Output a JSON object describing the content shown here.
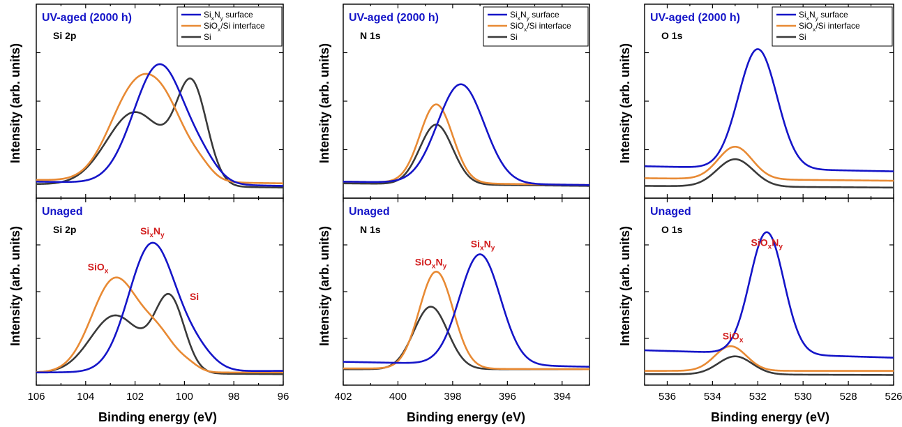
{
  "figure": {
    "y_axis_label": "Intensity (arb. units)",
    "x_axis_label": "Binding energy (eV)"
  },
  "colors": {
    "SixNy": "#1515c8",
    "interface": "#e88a34",
    "Si": "#3a3a3a",
    "panel_title": "#1515c8",
    "peak_label": "#d21e1e"
  },
  "chart_data": [
    {
      "type": "line",
      "row": "aged",
      "col": 0,
      "title": "UV-aged (2000 h)",
      "subtitle": "Si 2p",
      "xlim": [
        106,
        96
      ],
      "ylim": [
        0,
        1
      ],
      "xticks": [
        106,
        104,
        102,
        100,
        98,
        96
      ],
      "legend": {
        "position": "top-right",
        "entries": [
          {
            "series": "SixNy",
            "base": "Si",
            "sub1": "x",
            "mid": "N",
            "sub2": "y",
            "suffix": " surface"
          },
          {
            "series": "interface",
            "base": "SiO",
            "sub1": "x",
            "mid": "",
            "sub2": "",
            "suffix": "/Si interface"
          },
          {
            "series": "Si",
            "base": "Si",
            "sub1": "",
            "mid": "",
            "sub2": "",
            "suffix": ""
          }
        ]
      },
      "series": [
        {
          "name": "SixNy",
          "baseline": [
            0.04,
            0.015
          ],
          "peaks": [
            [
              101.0,
              0.7,
              1.05
            ],
            [
              99.2,
              0.07,
              0.6
            ]
          ]
        },
        {
          "name": "interface",
          "baseline": [
            0.05,
            0.03
          ],
          "peaks": [
            [
              102.1,
              0.48,
              1.0
            ],
            [
              100.7,
              0.34,
              0.9
            ],
            [
              99.3,
              0.04,
              0.45
            ]
          ]
        },
        {
          "name": "Si",
          "baseline": [
            0.025,
            0.005
          ],
          "peaks": [
            [
              102.0,
              0.43,
              1.15
            ],
            [
              99.7,
              0.57,
              0.62
            ]
          ]
        }
      ],
      "labels": []
    },
    {
      "type": "line",
      "row": "aged",
      "col": 1,
      "title": "UV-aged (2000 h)",
      "subtitle": "N 1s",
      "xlim": [
        402,
        393
      ],
      "ylim": [
        0,
        1
      ],
      "xticks": [
        402,
        400,
        398,
        396,
        394
      ],
      "legend": {
        "position": "top-right",
        "entries": [
          {
            "series": "SixNy",
            "base": "Si",
            "sub1": "x",
            "mid": "N",
            "sub2": "y",
            "suffix": " surface"
          },
          {
            "series": "interface",
            "base": "SiO",
            "sub1": "x",
            "mid": "",
            "sub2": "",
            "suffix": "/Si interface"
          },
          {
            "series": "Si",
            "base": "Si",
            "sub1": "",
            "mid": "",
            "sub2": "",
            "suffix": ""
          }
        ]
      },
      "series": [
        {
          "name": "SixNy",
          "baseline": [
            0.04,
            0.02
          ],
          "peaks": [
            [
              397.7,
              0.58,
              0.85
            ]
          ]
        },
        {
          "name": "interface",
          "baseline": [
            0.04,
            0.02
          ],
          "peaks": [
            [
              398.6,
              0.46,
              0.6
            ]
          ]
        },
        {
          "name": "Si",
          "baseline": [
            0.03,
            0.015
          ],
          "peaks": [
            [
              398.6,
              0.35,
              0.6
            ]
          ]
        }
      ],
      "labels": []
    },
    {
      "type": "line",
      "row": "aged",
      "col": 2,
      "title": "UV-aged (2000 h)",
      "subtitle": "O 1s",
      "xlim": [
        537,
        526
      ],
      "ylim": [
        0,
        1
      ],
      "xticks": [
        536,
        534,
        532,
        530,
        528,
        526
      ],
      "legend": {
        "position": "top-right",
        "entries": [
          {
            "series": "SixNy",
            "base": "Si",
            "sub1": "x",
            "mid": "N",
            "sub2": "y",
            "suffix": " surface"
          },
          {
            "series": "interface",
            "base": "SiO",
            "sub1": "x",
            "mid": "",
            "sub2": "",
            "suffix": "/Si interface"
          },
          {
            "series": "Si",
            "base": "Si",
            "sub1": "",
            "mid": "",
            "sub2": "",
            "suffix": ""
          }
        ]
      },
      "series": [
        {
          "name": "SixNy",
          "baseline": [
            0.13,
            0.1
          ],
          "peaks": [
            [
              532.0,
              0.7,
              0.85
            ]
          ]
        },
        {
          "name": "interface",
          "baseline": [
            0.06,
            0.045
          ],
          "peaks": [
            [
              533.0,
              0.19,
              0.75
            ]
          ]
        },
        {
          "name": "Si",
          "baseline": [
            0.015,
            0.005
          ],
          "peaks": [
            [
              533.0,
              0.16,
              0.8
            ]
          ]
        }
      ],
      "labels": []
    },
    {
      "type": "line",
      "row": "unaged",
      "col": 0,
      "title": "Unaged",
      "subtitle": "Si 2p",
      "xlim": [
        106,
        96
      ],
      "ylim": [
        0,
        1
      ],
      "xticks": [
        106,
        104,
        102,
        100,
        98,
        96
      ],
      "legend": null,
      "series": [
        {
          "name": "SixNy",
          "baseline": [
            0.02,
            0.03
          ],
          "peaks": [
            [
              101.3,
              0.78,
              0.95
            ],
            [
              99.5,
              0.1,
              0.7
            ]
          ]
        },
        {
          "name": "interface",
          "baseline": [
            0.02,
            0.02
          ],
          "peaks": [
            [
              102.8,
              0.57,
              0.95
            ],
            [
              101.0,
              0.19,
              0.7
            ],
            [
              99.8,
              0.03,
              0.4
            ]
          ]
        },
        {
          "name": "Si",
          "baseline": [
            0.02,
            0.01
          ],
          "peaks": [
            [
              102.8,
              0.35,
              1.0
            ],
            [
              100.6,
              0.45,
              0.6
            ]
          ]
        }
      ],
      "labels": [
        {
          "base": "Si",
          "sub1": "x",
          "mid": "N",
          "sub2": "y",
          "x": 101.3,
          "y": 0.86
        },
        {
          "base": "SiO",
          "sub1": "x",
          "mid": "",
          "sub2": "",
          "x": 103.5,
          "y": 0.64
        },
        {
          "base": "Si",
          "sub1": "",
          "mid": "",
          "sub2": "",
          "x": 99.6,
          "y": 0.46
        }
      ]
    },
    {
      "type": "line",
      "row": "unaged",
      "col": 1,
      "title": "Unaged",
      "subtitle": "N 1s",
      "xlim": [
        402,
        393
      ],
      "ylim": [
        0,
        1
      ],
      "xticks": [
        402,
        400,
        398,
        396,
        394
      ],
      "legend": null,
      "series": [
        {
          "name": "SixNy",
          "baseline": [
            0.085,
            0.055
          ],
          "peaks": [
            [
              397.0,
              0.67,
              0.75
            ]
          ]
        },
        {
          "name": "interface",
          "baseline": [
            0.045,
            0.04
          ],
          "peaks": [
            [
              398.6,
              0.59,
              0.62
            ]
          ]
        },
        {
          "name": "Si",
          "baseline": [
            0.04,
            0.04
          ],
          "peaks": [
            [
              398.8,
              0.38,
              0.62
            ]
          ]
        }
      ],
      "labels": [
        {
          "base": "SiO",
          "sub1": "x",
          "mid": "N",
          "sub2": "y",
          "x": 398.8,
          "y": 0.67
        },
        {
          "base": "Si",
          "sub1": "x",
          "mid": "N",
          "sub2": "y",
          "x": 396.9,
          "y": 0.78
        }
      ]
    },
    {
      "type": "line",
      "row": "unaged",
      "col": 2,
      "title": "Unaged",
      "subtitle": "O 1s",
      "xlim": [
        537,
        526
      ],
      "ylim": [
        0,
        1
      ],
      "xticks": [
        536,
        534,
        532,
        530,
        528,
        526
      ],
      "legend": null,
      "series": [
        {
          "name": "SixNy",
          "baseline": [
            0.155,
            0.11
          ],
          "peaks": [
            [
              531.6,
              0.74,
              0.75
            ]
          ]
        },
        {
          "name": "interface",
          "baseline": [
            0.03,
            0.03
          ],
          "peaks": [
            [
              533.2,
              0.15,
              0.7
            ]
          ]
        },
        {
          "name": "Si",
          "baseline": [
            0.01,
            0.005
          ],
          "peaks": [
            [
              533.0,
              0.11,
              0.75
            ]
          ]
        }
      ],
      "labels": [
        {
          "base": "SiO",
          "sub1": "x",
          "mid": "N",
          "sub2": "y",
          "x": 531.6,
          "y": 0.79
        },
        {
          "base": "SiO",
          "sub1": "x",
          "mid": "",
          "sub2": "",
          "x": 533.1,
          "y": 0.22
        }
      ]
    }
  ]
}
